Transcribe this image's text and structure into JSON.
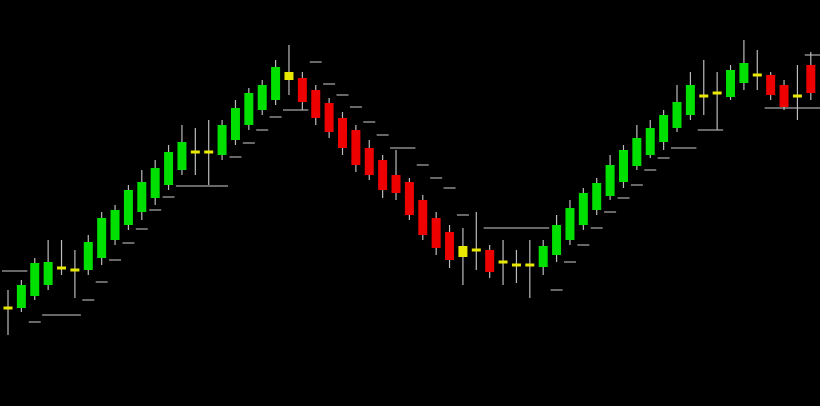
{
  "chart_data": {
    "type": "candlestick",
    "ylim": [
      0,
      406
    ],
    "open": [
      98,
      98,
      110,
      121,
      138,
      136,
      136,
      148,
      166,
      181,
      194,
      208,
      221,
      236,
      254,
      254,
      251,
      266,
      281,
      296,
      306,
      326,
      328,
      316,
      303,
      288,
      276,
      258,
      246,
      231,
      224,
      206,
      188,
      174,
      160,
      156,
      156,
      144,
      141,
      141,
      139,
      151,
      166,
      181,
      196,
      210,
      224,
      240,
      251,
      264,
      278,
      291,
      310,
      313,
      309,
      323,
      331,
      331,
      321,
      310,
      341
    ],
    "high": [
      116,
      126,
      148,
      166,
      166,
      156,
      171,
      194,
      201,
      221,
      236,
      246,
      261,
      281,
      278,
      286,
      286,
      306,
      318,
      326,
      346,
      361,
      334,
      321,
      308,
      294,
      281,
      266,
      251,
      256,
      228,
      211,
      194,
      181,
      178,
      194,
      161,
      166,
      156,
      166,
      166,
      191,
      206,
      218,
      228,
      251,
      261,
      281,
      286,
      296,
      321,
      334,
      346,
      334,
      341,
      366,
      356,
      334,
      326,
      341,
      354
    ],
    "low": [
      71,
      94,
      106,
      116,
      131,
      108,
      131,
      141,
      161,
      176,
      186,
      201,
      216,
      231,
      231,
      221,
      246,
      261,
      276,
      291,
      301,
      311,
      296,
      281,
      268,
      251,
      234,
      226,
      208,
      206,
      186,
      166,
      151,
      138,
      121,
      136,
      128,
      121,
      123,
      108,
      131,
      144,
      161,
      176,
      191,
      206,
      218,
      236,
      248,
      256,
      274,
      286,
      291,
      276,
      306,
      316,
      316,
      306,
      296,
      286,
      306
    ],
    "close": [
      98,
      121,
      143,
      144,
      138,
      136,
      164,
      188,
      196,
      216,
      224,
      238,
      254,
      264,
      254,
      254,
      281,
      298,
      313,
      321,
      339,
      334,
      304,
      288,
      274,
      258,
      241,
      231,
      216,
      213,
      191,
      171,
      158,
      146,
      149,
      156,
      134,
      144,
      141,
      141,
      160,
      181,
      198,
      213,
      223,
      241,
      256,
      268,
      278,
      291,
      304,
      321,
      310,
      313,
      336,
      343,
      331,
      311,
      299,
      310,
      313
    ],
    "colors": [
      "#e8e800",
      "#00e000",
      "#00e000",
      "#00e000",
      "#e8e800",
      "#e8e800",
      "#00e000",
      "#00e000",
      "#00e000",
      "#00e000",
      "#00e000",
      "#00e000",
      "#00e000",
      "#00e000",
      "#e8e800",
      "#e8e800",
      "#00e000",
      "#00e000",
      "#00e000",
      "#00e000",
      "#00e000",
      "#e8e800",
      "#ee0000",
      "#ee0000",
      "#ee0000",
      "#ee0000",
      "#ee0000",
      "#ee0000",
      "#ee0000",
      "#ee0000",
      "#ee0000",
      "#ee0000",
      "#ee0000",
      "#ee0000",
      "#e8e800",
      "#e8e800",
      "#ee0000",
      "#e8e800",
      "#e8e800",
      "#e8e800",
      "#00e000",
      "#00e000",
      "#00e000",
      "#00e000",
      "#00e000",
      "#00e000",
      "#00e000",
      "#00e000",
      "#00e000",
      "#00e000",
      "#00e000",
      "#00e000",
      "#e8e800",
      "#e8e800",
      "#00e000",
      "#00e000",
      "#e8e800",
      "#ee0000",
      "#ee0000",
      "#e8e800",
      "#ee0000"
    ],
    "wick_color": "#bbbbbb",
    "stop_color": "#8a8a8a",
    "stops": [
      {
        "from": 0,
        "to": 1,
        "value": 135
      },
      {
        "from": 2,
        "to": 2,
        "value": 84
      },
      {
        "from": 3,
        "to": 5,
        "value": 91
      },
      {
        "from": 6,
        "to": 6,
        "value": 106
      },
      {
        "from": 7,
        "to": 7,
        "value": 124
      },
      {
        "from": 8,
        "to": 8,
        "value": 146
      },
      {
        "from": 9,
        "to": 9,
        "value": 163
      },
      {
        "from": 10,
        "to": 10,
        "value": 177
      },
      {
        "from": 11,
        "to": 11,
        "value": 196
      },
      {
        "from": 12,
        "to": 12,
        "value": 209
      },
      {
        "from": 13,
        "to": 16,
        "value": 220
      },
      {
        "from": 17,
        "to": 17,
        "value": 249
      },
      {
        "from": 18,
        "to": 18,
        "value": 263
      },
      {
        "from": 19,
        "to": 19,
        "value": 276
      },
      {
        "from": 20,
        "to": 20,
        "value": 289
      },
      {
        "from": 21,
        "to": 22,
        "value": 296
      },
      {
        "from": 23,
        "to": 23,
        "value": 344
      },
      {
        "from": 24,
        "to": 24,
        "value": 322
      },
      {
        "from": 25,
        "to": 25,
        "value": 311
      },
      {
        "from": 26,
        "to": 26,
        "value": 299
      },
      {
        "from": 27,
        "to": 27,
        "value": 284
      },
      {
        "from": 28,
        "to": 28,
        "value": 271
      },
      {
        "from": 29,
        "to": 30,
        "value": 258
      },
      {
        "from": 31,
        "to": 31,
        "value": 241
      },
      {
        "from": 32,
        "to": 32,
        "value": 228
      },
      {
        "from": 33,
        "to": 33,
        "value": 218
      },
      {
        "from": 34,
        "to": 34,
        "value": 191
      },
      {
        "from": 36,
        "to": 40,
        "value": 178
      },
      {
        "from": 41,
        "to": 41,
        "value": 116
      },
      {
        "from": 42,
        "to": 42,
        "value": 144
      },
      {
        "from": 43,
        "to": 43,
        "value": 161
      },
      {
        "from": 44,
        "to": 44,
        "value": 178
      },
      {
        "from": 45,
        "to": 45,
        "value": 194
      },
      {
        "from": 46,
        "to": 46,
        "value": 208
      },
      {
        "from": 47,
        "to": 47,
        "value": 221
      },
      {
        "from": 48,
        "to": 48,
        "value": 236
      },
      {
        "from": 49,
        "to": 49,
        "value": 248
      },
      {
        "from": 50,
        "to": 51,
        "value": 258
      },
      {
        "from": 52,
        "to": 53,
        "value": 276
      },
      {
        "from": 57,
        "to": 61,
        "value": 298
      },
      {
        "from": 60,
        "to": 61,
        "value": 351
      }
    ]
  }
}
